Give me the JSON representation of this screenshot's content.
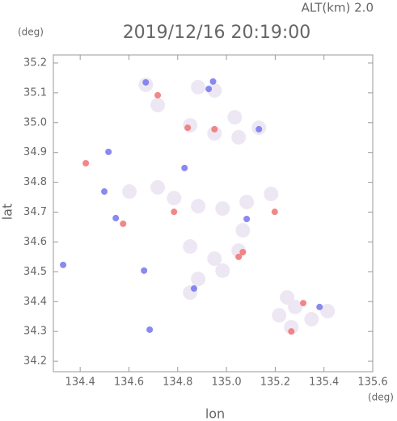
{
  "chart_data": {
    "type": "scatter",
    "title": "2019/12/16 20:19:00",
    "subtitle": "ALT(km) 2.0",
    "y_unit": "(deg)",
    "x_unit": "(deg)",
    "x_label": "lon",
    "y_label": "lat",
    "xlim": [
      134.29,
      135.6
    ],
    "ylim": [
      34.165,
      35.227
    ],
    "xticks": [
      134.4,
      134.6,
      134.8,
      {
        "value": 135,
        "label": "135.0"
      },
      135.2,
      135.4,
      135.6
    ],
    "yticks": [
      34.2,
      34.3,
      34.4,
      34.5,
      34.6,
      34.7,
      34.8,
      34.9,
      {
        "value": 35,
        "label": "35.0"
      },
      35.1,
      35.2
    ],
    "series": [
      {
        "color": "#ebe4f3",
        "x": [
          134.669,
          134.718,
          134.884,
          134.951,
          134.851,
          134.951,
          135.05,
          135.133,
          135.034,
          134.602,
          134.718,
          134.785,
          134.884,
          134.984,
          135.083,
          135.183,
          135.067,
          134.851,
          134.951,
          135.05,
          134.884,
          134.851,
          134.984,
          135.216,
          135.282,
          135.349,
          135.415,
          135.249,
          135.266
        ],
        "y": [
          35.127,
          35.059,
          35.119,
          35.108,
          34.991,
          34.964,
          34.951,
          34.983,
          35.018,
          34.769,
          34.783,
          34.747,
          34.72,
          34.712,
          34.734,
          34.761,
          34.639,
          34.585,
          34.544,
          34.571,
          34.476,
          34.43,
          34.504,
          34.354,
          34.382,
          34.341,
          34.368,
          34.414,
          34.314
        ]
      },
      {
        "color": "#f07272",
        "x": [
          134.423,
          135.067,
          135.05,
          134.576,
          134.841,
          134.951,
          135.266,
          135.315,
          134.718,
          134.785,
          135.198
        ],
        "y": [
          34.864,
          34.566,
          34.55,
          34.661,
          34.983,
          34.978,
          34.3,
          34.395,
          35.092,
          34.701,
          34.701
        ]
      },
      {
        "color": "#7474ee",
        "x": [
          134.685,
          134.516,
          134.499,
          134.546,
          134.669,
          134.945,
          135.133,
          134.828,
          134.662,
          134.33,
          135.083,
          135.382,
          134.867,
          134.927
        ],
        "y": [
          34.306,
          34.902,
          34.769,
          34.68,
          35.135,
          35.138,
          34.978,
          34.848,
          34.504,
          34.523,
          34.677,
          34.382,
          34.444,
          35.113
        ]
      }
    ]
  }
}
